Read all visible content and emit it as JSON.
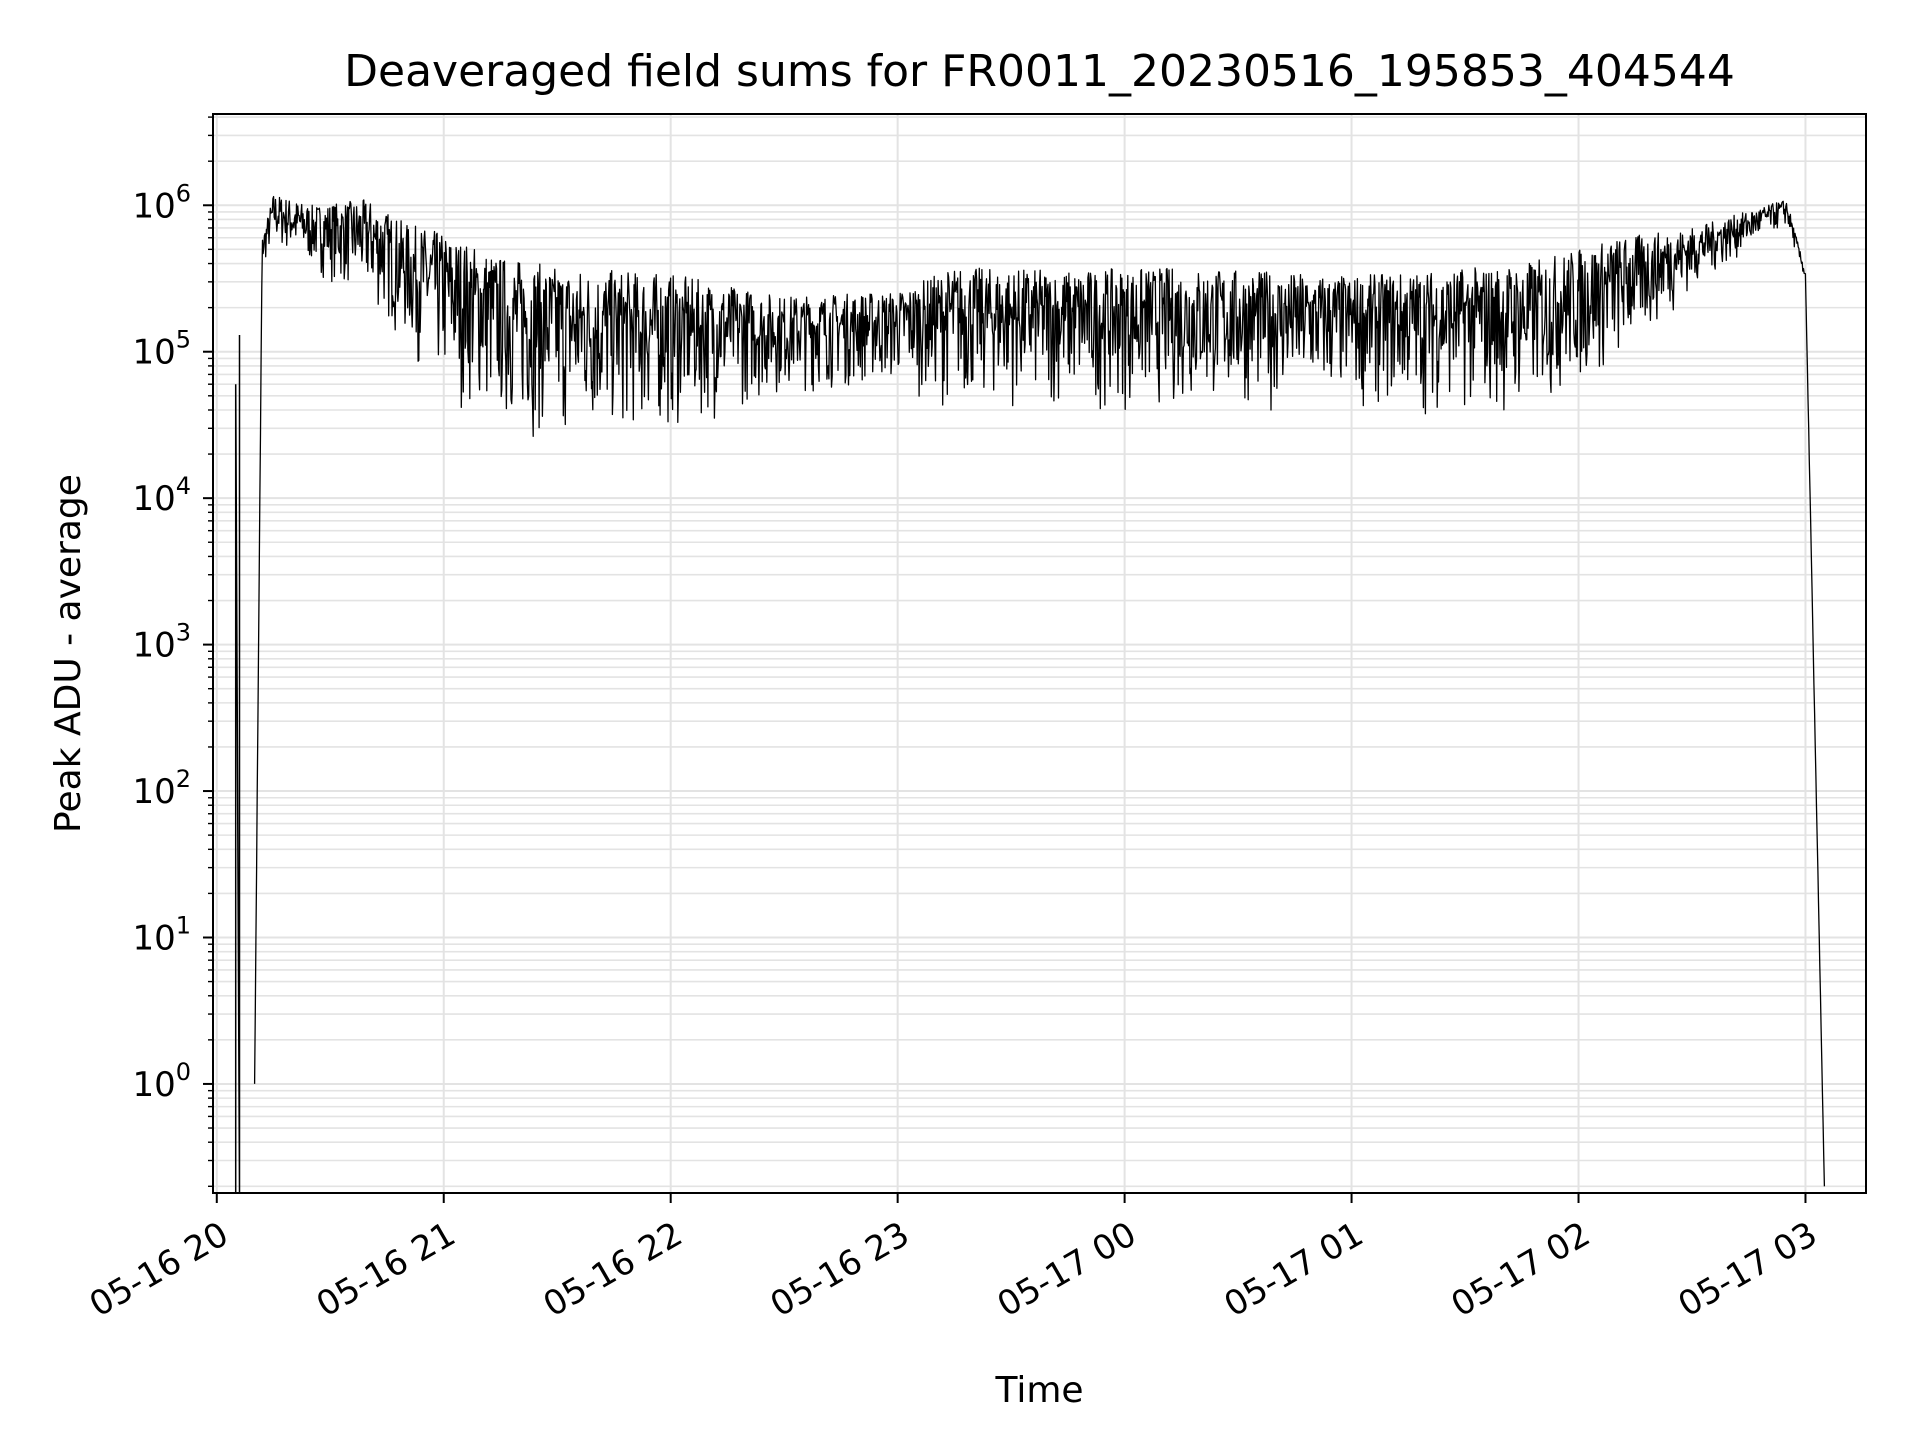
{
  "chart_data": {
    "type": "line",
    "title": "Deaveraged field sums for FR0011_20230516_195853_404544",
    "xlabel": "Time",
    "ylabel": "Peak ADU - average",
    "yscale": "log",
    "grid": true,
    "colors": {
      "line": "#000000",
      "grid": "#e3e3e3",
      "axes": "#000000"
    },
    "xlim": [
      "2023-05-16 19:59",
      "2023-05-17 03:16"
    ],
    "ylim": [
      0.18,
      4200000
    ],
    "xticks": [
      {
        "t": "2023-05-16 20:00",
        "label": "05-16 20"
      },
      {
        "t": "2023-05-16 21:00",
        "label": "05-16 21"
      },
      {
        "t": "2023-05-16 22:00",
        "label": "05-16 22"
      },
      {
        "t": "2023-05-16 23:00",
        "label": "05-16 23"
      },
      {
        "t": "2023-05-17 00:00",
        "label": "05-17 00"
      },
      {
        "t": "2023-05-17 01:00",
        "label": "05-17 01"
      },
      {
        "t": "2023-05-17 02:00",
        "label": "05-17 02"
      },
      {
        "t": "2023-05-17 03:00",
        "label": "05-17 03"
      }
    ],
    "yticks": [
      {
        "v": 1,
        "base": "10",
        "exp": "0"
      },
      {
        "v": 10,
        "base": "10",
        "exp": "1"
      },
      {
        "v": 100,
        "base": "10",
        "exp": "2"
      },
      {
        "v": 1000,
        "base": "10",
        "exp": "3"
      },
      {
        "v": 10000,
        "base": "10",
        "exp": "4"
      },
      {
        "v": 100000,
        "base": "10",
        "exp": "5"
      },
      {
        "v": 1000000,
        "base": "10",
        "exp": "6"
      }
    ],
    "series": [
      {
        "upper": [
          [
            "2023-05-16 20:10",
            1.0
          ],
          [
            "2023-05-16 20:12",
            600000
          ],
          [
            "2023-05-16 20:15",
            1200000
          ],
          [
            "2023-05-16 20:25",
            1000000
          ],
          [
            "2023-05-16 20:40",
            1100000
          ],
          [
            "2023-05-16 20:50",
            750000
          ],
          [
            "2023-05-16 21:00",
            650000
          ],
          [
            "2023-05-16 21:15",
            450000
          ],
          [
            "2023-05-16 21:30",
            380000
          ],
          [
            "2023-05-16 22:00",
            340000
          ],
          [
            "2023-05-16 22:30",
            240000
          ],
          [
            "2023-05-16 23:00",
            260000
          ],
          [
            "2023-05-16 23:15",
            380000
          ],
          [
            "2023-05-16 23:45",
            360000
          ],
          [
            "2023-05-17 00:15",
            380000
          ],
          [
            "2023-05-17 01:00",
            330000
          ],
          [
            "2023-05-17 01:45",
            400000
          ],
          [
            "2023-05-17 02:10",
            600000
          ],
          [
            "2023-05-17 02:30",
            700000
          ],
          [
            "2023-05-17 02:50",
            1000000
          ],
          [
            "2023-05-17 02:55",
            1100000
          ],
          [
            "2023-05-17 03:00",
            350000
          ],
          [
            "2023-05-17 03:05",
            0.2
          ]
        ],
        "lower": [
          [
            "2023-05-16 20:10",
            1.0
          ],
          [
            "2023-05-16 20:12",
            350000
          ],
          [
            "2023-05-16 20:15",
            500000
          ],
          [
            "2023-05-16 20:25",
            350000
          ],
          [
            "2023-05-16 20:40",
            200000
          ],
          [
            "2023-05-16 20:50",
            100000
          ],
          [
            "2023-05-16 21:00",
            45000
          ],
          [
            "2023-05-16 21:15",
            28000
          ],
          [
            "2023-05-16 21:30",
            22000
          ],
          [
            "2023-05-16 22:00",
            26000
          ],
          [
            "2023-05-16 22:30",
            50000
          ],
          [
            "2023-05-16 23:00",
            55000
          ],
          [
            "2023-05-16 23:15",
            40000
          ],
          [
            "2023-05-16 23:45",
            38000
          ],
          [
            "2023-05-17 00:15",
            38000
          ],
          [
            "2023-05-17 01:00",
            40000
          ],
          [
            "2023-05-17 01:45",
            33000
          ],
          [
            "2023-05-17 02:10",
            70000
          ],
          [
            "2023-05-17 02:30",
            250000
          ],
          [
            "2023-05-17 02:50",
            600000
          ],
          [
            "2023-05-17 02:55",
            700000
          ],
          [
            "2023-05-17 03:00",
            300000
          ],
          [
            "2023-05-17 03:05",
            0.2
          ]
        ],
        "start_spike": [
          [
            "2023-05-16 20:05",
            0.18
          ],
          [
            "2023-05-16 20:05",
            60000
          ],
          [
            "2023-05-16 20:06",
            0.18
          ],
          [
            "2023-05-16 20:06",
            130000
          ]
        ]
      }
    ]
  }
}
